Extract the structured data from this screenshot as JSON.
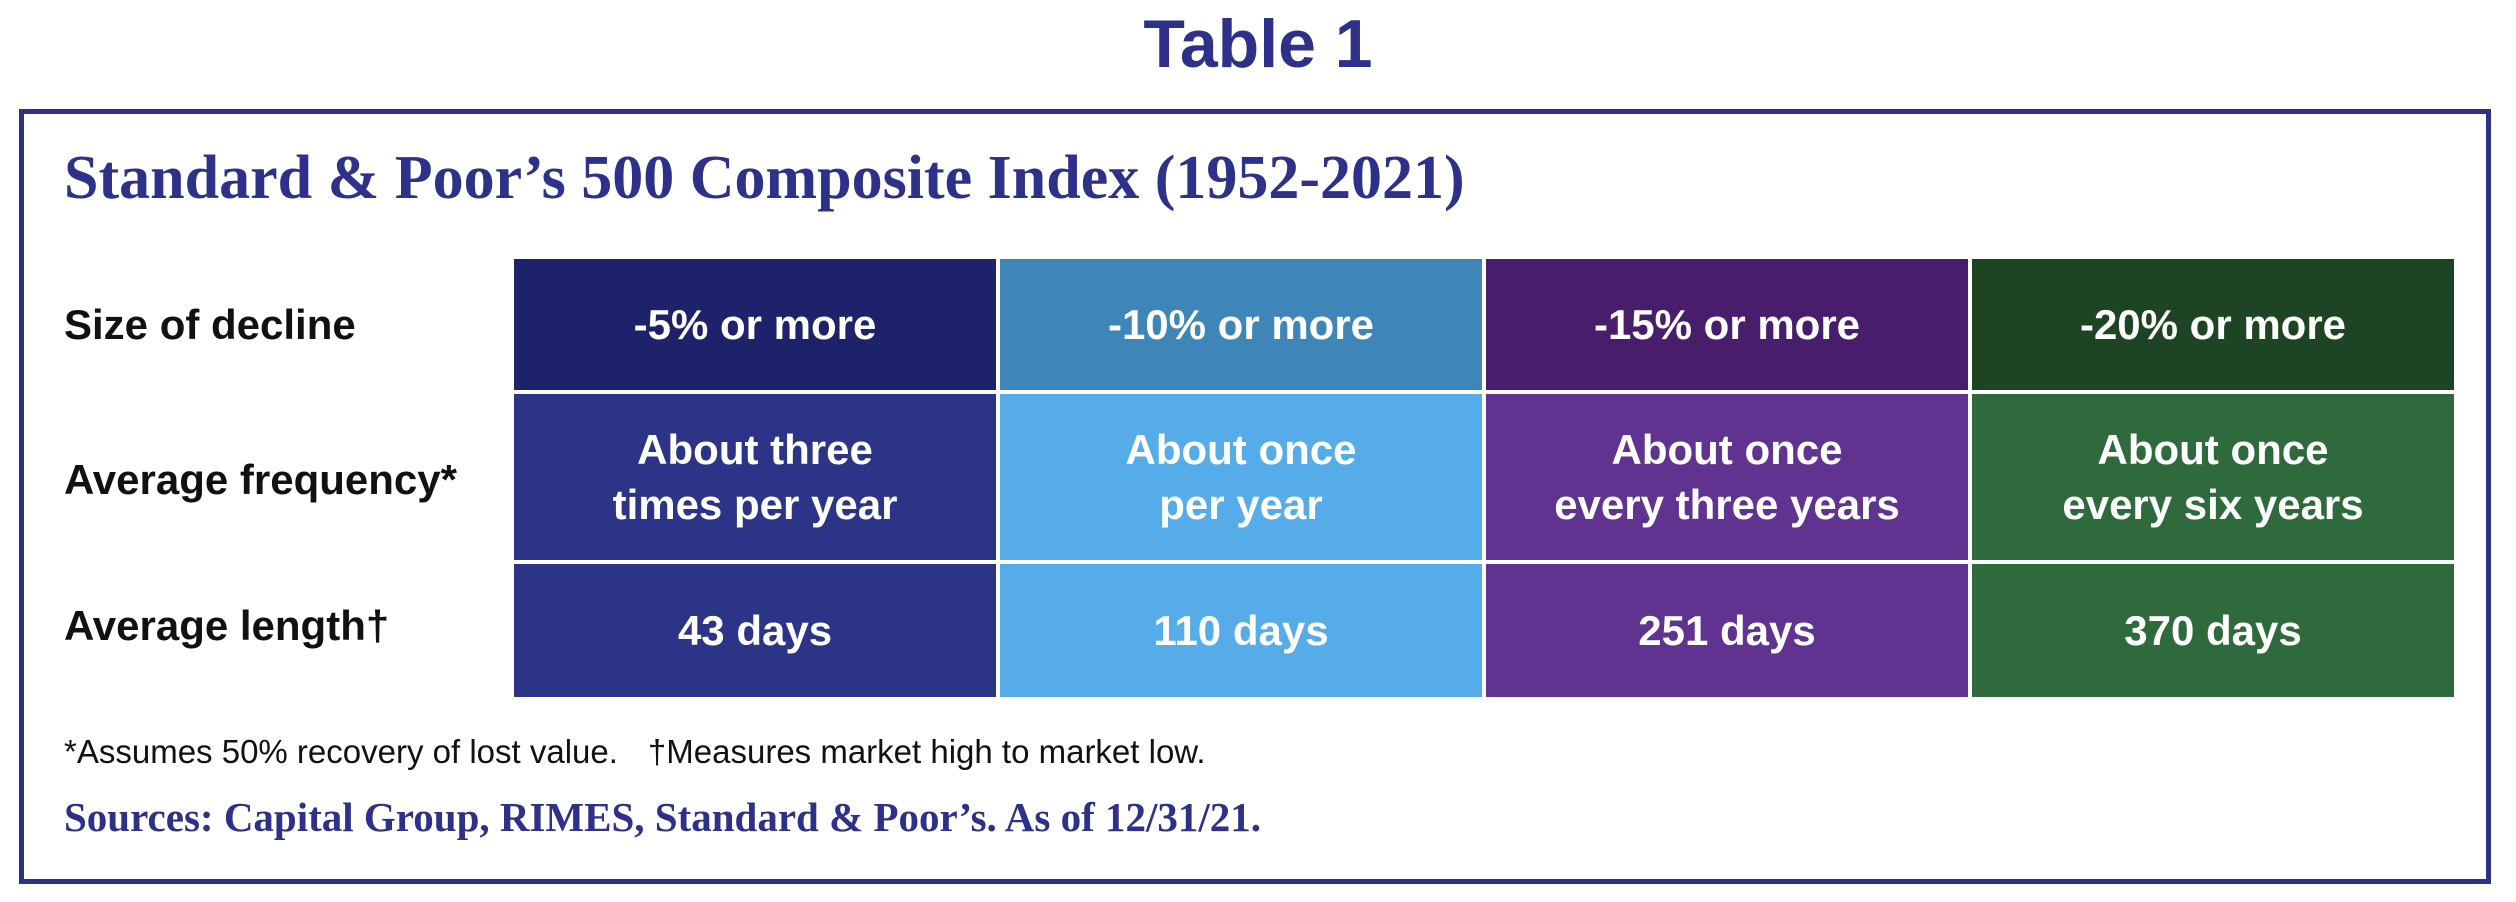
{
  "title": "Table 1",
  "index_title": "Standard & Poor’s 500 Composite Index (1952-2021)",
  "rows": [
    {
      "label": "Size of decline"
    },
    {
      "label": "Average frequency*"
    },
    {
      "label": "Average length†"
    }
  ],
  "columns": [
    {
      "decline": "-5% or more",
      "frequency": "About three\ntimes per year",
      "length": "43 days",
      "header_color": "#1e226b",
      "body_color": "#2c3487"
    },
    {
      "decline": "-10% or more",
      "frequency": "About once\nper year",
      "length": "110 days",
      "header_color": "#3e86b8",
      "body_color": "#55ace8"
    },
    {
      "decline": "-15% or more",
      "frequency": "About once\nevery three years",
      "length": "251 days",
      "header_color": "#481d6b",
      "body_color": "#5f338f"
    },
    {
      "decline": "-20% or more",
      "frequency": "About once\nevery six years",
      "length": "370 days",
      "header_color": "#1d4423",
      "body_color": "#2f6a3d"
    }
  ],
  "footnotes": {
    "first": "*Assumes 50% recovery of lost value.",
    "second": "†Measures market high to market low."
  },
  "sources": "Sources: Capital Group, RIMES, Standard & Poor’s. As of 12/31/21.",
  "colors": {
    "accent": "#2d3189",
    "label_text": "#111111"
  }
}
